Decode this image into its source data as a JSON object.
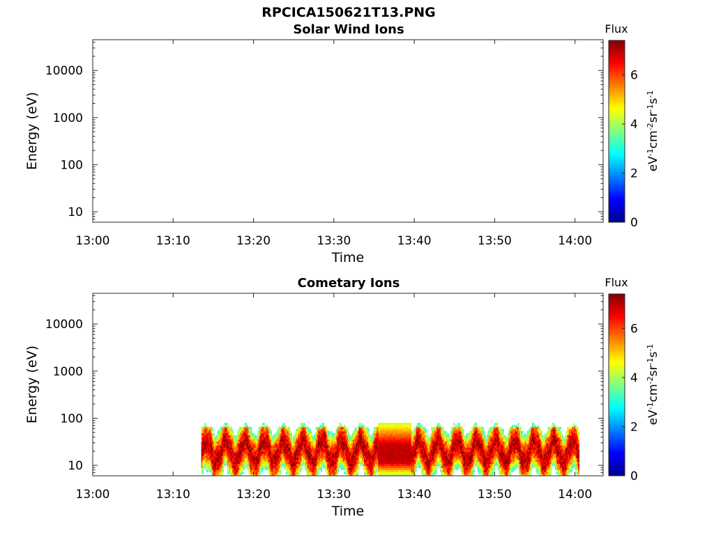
{
  "figure_title": "RPCICA150621T13.PNG",
  "chart_data": [
    {
      "type": "heatmap",
      "title": "Solar Wind Ions",
      "xlabel": "Time",
      "ylabel": "Energy (eV)",
      "x_ticks": [
        "13:00",
        "13:10",
        "13:20",
        "13:30",
        "13:40",
        "13:50",
        "14:00"
      ],
      "x_range_minutes": [
        0,
        63.5
      ],
      "y_scale": "log",
      "y_ticks": [
        10,
        100,
        1000,
        10000
      ],
      "y_tick_labels": [
        "10",
        "100",
        "1000",
        "10000"
      ],
      "y_range": [
        6,
        45000
      ],
      "colorbar": {
        "title": "Flux",
        "unit": "eV^-1 cm^-2 sr^-1 s^-1",
        "range": [
          0,
          7.4
        ],
        "ticks": [
          0,
          2,
          4,
          6
        ],
        "colormap": "jet"
      },
      "data_present": false
    },
    {
      "type": "heatmap",
      "title": "Cometary Ions",
      "xlabel": "Time",
      "ylabel": "Energy (eV)",
      "x_ticks": [
        "13:00",
        "13:10",
        "13:20",
        "13:30",
        "13:40",
        "13:50",
        "14:00"
      ],
      "x_range_minutes": [
        0,
        63.5
      ],
      "y_scale": "log",
      "y_ticks": [
        10,
        100,
        1000,
        10000
      ],
      "y_tick_labels": [
        "10",
        "100",
        "1000",
        "10000"
      ],
      "y_range": [
        6,
        45000
      ],
      "colorbar": {
        "title": "Flux",
        "unit": "eV^-1 cm^-2 sr^-1 s^-1",
        "range": [
          0,
          7.4
        ],
        "ticks": [
          0,
          2,
          4,
          6
        ],
        "colormap": "jet"
      },
      "data_present": true,
      "data_time_range": [
        "13:13:30",
        "14:00:30"
      ],
      "energy_range_eV": [
        6,
        80
      ],
      "peak_flux_interval": [
        "13:35:30",
        "13:39:30"
      ],
      "peak_flux": 7.2
    }
  ]
}
